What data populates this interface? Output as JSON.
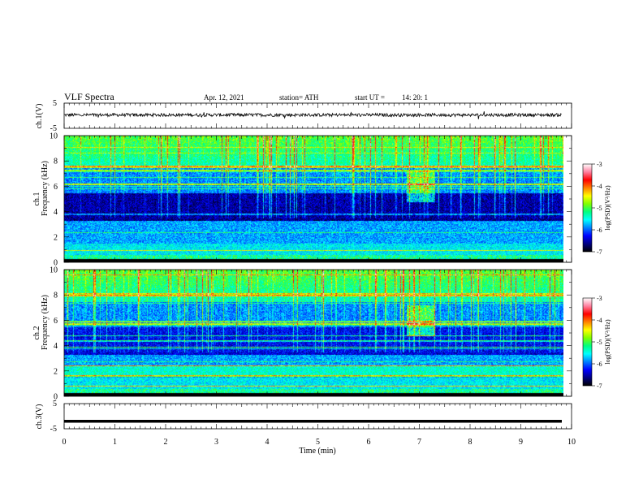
{
  "header": {
    "title": "VLF  Spectra",
    "date": "Apr. 12, 2021",
    "station": "station= ATH",
    "start_ut_label": "start  UT  =",
    "start_ut_value": "14: 20: 1"
  },
  "colormap": {
    "stops": [
      "#000000",
      "#000080",
      "#0000ff",
      "#0080ff",
      "#00ffff",
      "#00ff80",
      "#80ff00",
      "#ffff00",
      "#ff8000",
      "#ff0000",
      "#ff80a0",
      "#ffffff"
    ]
  },
  "chart_data": [
    {
      "type": "line",
      "panel": "ch1-waveform",
      "ylabel": "ch.1(V)",
      "ylim": [
        -5,
        5
      ],
      "yticks": [
        "5",
        "-5"
      ],
      "xlim": [
        0,
        10
      ],
      "series": [
        {
          "values_note": "",
          "mean": 0.3,
          "amplitude": 0.8
        }
      ]
    },
    {
      "type": "heatmap",
      "panel": "ch1-spectrogram",
      "ylabel_top": "ch.1",
      "ylabel": "Frequency  (kHz)",
      "ylim": [
        0,
        10
      ],
      "yticks": [
        "0",
        "2",
        "4",
        "6",
        "8",
        "10"
      ],
      "xlim": [
        0,
        10
      ],
      "colorbar": {
        "label": "log(PSD)(V²/Hz)",
        "range": [
          -7,
          -3
        ],
        "ticks": [
          "-3",
          "-4",
          "-5",
          "-6",
          "-7"
        ]
      }
    },
    {
      "type": "heatmap",
      "panel": "ch2-spectrogram",
      "ylabel_top": "ch.2",
      "ylabel": "Frequency  (kHz)",
      "ylim": [
        0,
        10
      ],
      "yticks": [
        "0",
        "2",
        "4",
        "6",
        "8",
        "10"
      ],
      "xlim": [
        0,
        10
      ],
      "colorbar": {
        "label": "log(PSD)(V²/Hz)",
        "range": [
          -7,
          -3
        ],
        "ticks": [
          "-3",
          "-4",
          "-5",
          "-6",
          "-7"
        ]
      }
    },
    {
      "type": "line",
      "panel": "ch3-waveform",
      "ylabel": "ch.3(V)",
      "ylim": [
        -5,
        5
      ],
      "yticks": [
        "5",
        "-5"
      ],
      "xlim": [
        0,
        10
      ],
      "xlabel": "Time  (min)",
      "xticks": [
        "0",
        "1",
        "2",
        "3",
        "4",
        "5",
        "6",
        "7",
        "8",
        "9",
        "10"
      ],
      "series": [
        {
          "mean": -2.0
        }
      ]
    }
  ]
}
